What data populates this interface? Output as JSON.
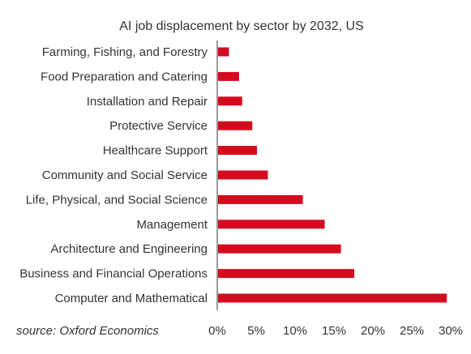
{
  "chart_data": {
    "type": "bar",
    "orientation": "horizontal",
    "title": "AI job displacement by sector by 2032, US",
    "categories": [
      "Farming, Fishing, and Forestry",
      "Food Preparation and Catering",
      "Installation and Repair",
      "Protective Service",
      "Healthcare Support",
      "Community and Social Service",
      "Life, Physical, and Social Science",
      "Management",
      "Architecture and Engineering",
      "Business and Financial Operations",
      "Computer and Mathematical"
    ],
    "values": [
      1.5,
      2.8,
      3.2,
      4.5,
      5.1,
      6.5,
      11.0,
      13.8,
      15.9,
      17.6,
      29.5
    ],
    "xlim": [
      0,
      30
    ],
    "xticks": [
      0,
      5,
      10,
      15,
      20,
      25,
      30
    ],
    "xtick_labels": [
      "0%",
      "5%",
      "10%",
      "15%",
      "20%",
      "25%",
      "30%"
    ],
    "xlabel": "",
    "ylabel": "",
    "grid": false,
    "legend": "none",
    "bar_color": "#d40a1e",
    "axis_color": "#333333"
  },
  "footer": {
    "source": "source: Oxford Economics"
  }
}
